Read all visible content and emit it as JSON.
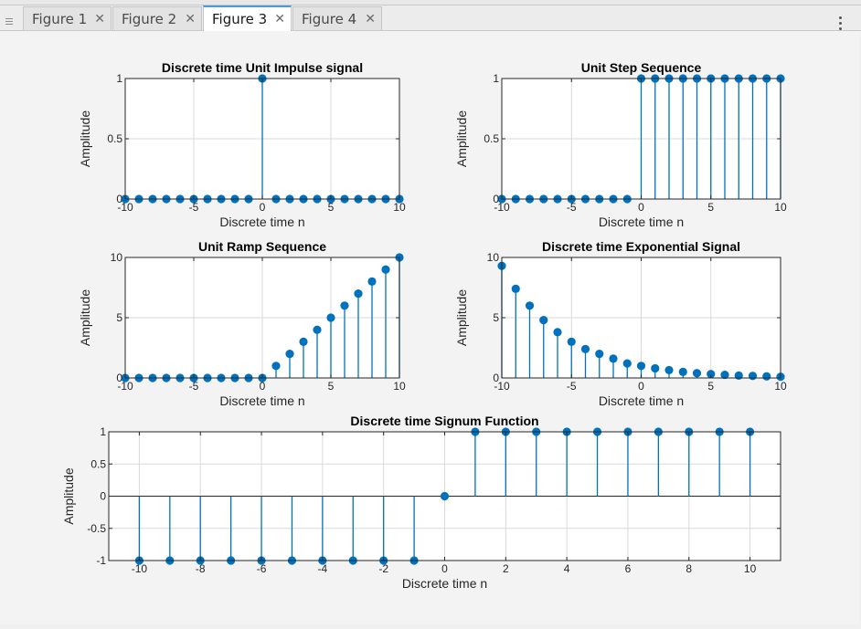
{
  "tabs": [
    {
      "label": "Figure 1",
      "active": false
    },
    {
      "label": "Figure 2",
      "active": false
    },
    {
      "label": "Figure 3",
      "active": true
    },
    {
      "label": "Figure 4",
      "active": false
    }
  ],
  "close_glyph": "✕",
  "colors": {
    "stem": "#0072bd",
    "marker": "#0072bd",
    "grid": "#d9d9d9",
    "axes_bg": "#ffffff",
    "figure_bg": "#f3f3f3"
  },
  "chart_data": [
    {
      "type": "stem",
      "title": "Discrete time Unit Impulse signal",
      "xlabel": "Discrete time n",
      "ylabel": "Amplitude",
      "xlim": [
        -10,
        10
      ],
      "ylim": [
        0,
        1
      ],
      "xticks": [
        -10,
        -5,
        0,
        5,
        10
      ],
      "yticks": [
        0,
        0.5,
        1
      ],
      "grid": true,
      "x": [
        -10,
        -9,
        -8,
        -7,
        -6,
        -5,
        -4,
        -3,
        -2,
        -1,
        0,
        1,
        2,
        3,
        4,
        5,
        6,
        7,
        8,
        9,
        10
      ],
      "y": [
        0,
        0,
        0,
        0,
        0,
        0,
        0,
        0,
        0,
        0,
        1,
        0,
        0,
        0,
        0,
        0,
        0,
        0,
        0,
        0,
        0
      ]
    },
    {
      "type": "stem",
      "title": "Unit Step Sequence",
      "xlabel": "Discrete time n",
      "ylabel": "Amplitude",
      "xlim": [
        -10,
        10
      ],
      "ylim": [
        0,
        1
      ],
      "xticks": [
        -10,
        -5,
        0,
        5,
        10
      ],
      "yticks": [
        0,
        0.5,
        1
      ],
      "grid": true,
      "x": [
        -10,
        -9,
        -8,
        -7,
        -6,
        -5,
        -4,
        -3,
        -2,
        -1,
        0,
        1,
        2,
        3,
        4,
        5,
        6,
        7,
        8,
        9,
        10
      ],
      "y": [
        0,
        0,
        0,
        0,
        0,
        0,
        0,
        0,
        0,
        0,
        1,
        1,
        1,
        1,
        1,
        1,
        1,
        1,
        1,
        1,
        1
      ]
    },
    {
      "type": "stem",
      "title": "Unit Ramp Sequence",
      "xlabel": "Discrete time n",
      "ylabel": "Amplitude",
      "xlim": [
        -10,
        10
      ],
      "ylim": [
        0,
        10
      ],
      "xticks": [
        -10,
        -5,
        0,
        5,
        10
      ],
      "yticks": [
        0,
        5,
        10
      ],
      "grid": true,
      "x": [
        -10,
        -9,
        -8,
        -7,
        -6,
        -5,
        -4,
        -3,
        -2,
        -1,
        0,
        1,
        2,
        3,
        4,
        5,
        6,
        7,
        8,
        9,
        10
      ],
      "y": [
        0,
        0,
        0,
        0,
        0,
        0,
        0,
        0,
        0,
        0,
        0,
        1,
        2,
        3,
        4,
        5,
        6,
        7,
        8,
        9,
        10
      ]
    },
    {
      "type": "stem",
      "title": "Discrete time Exponential Signal",
      "xlabel": "Discrete time n",
      "ylabel": "Amplitude",
      "xlim": [
        -10,
        10
      ],
      "ylim": [
        0,
        10
      ],
      "xticks": [
        -10,
        -5,
        0,
        5,
        10
      ],
      "yticks": [
        0,
        5,
        10
      ],
      "grid": true,
      "x": [
        -10,
        -9,
        -8,
        -7,
        -6,
        -5,
        -4,
        -3,
        -2,
        -1,
        0,
        1,
        2,
        3,
        4,
        5,
        6,
        7,
        8,
        9,
        10
      ],
      "y": [
        9.3,
        7.4,
        6.0,
        4.8,
        3.8,
        3.0,
        2.4,
        2.0,
        1.6,
        1.2,
        1.0,
        0.8,
        0.65,
        0.5,
        0.4,
        0.32,
        0.26,
        0.2,
        0.17,
        0.13,
        0.1
      ]
    },
    {
      "type": "stem",
      "title": "Discrete time Signum Function",
      "xlabel": "Discrete time n",
      "ylabel": "Amplitude",
      "xlim": [
        -11,
        11
      ],
      "ylim": [
        -1,
        1
      ],
      "xticks": [
        -10,
        -8,
        -6,
        -4,
        -2,
        0,
        2,
        4,
        6,
        8,
        10
      ],
      "yticks": [
        -1,
        -0.5,
        0,
        0.5,
        1
      ],
      "grid": true,
      "x": [
        -10,
        -9,
        -8,
        -7,
        -6,
        -5,
        -4,
        -3,
        -2,
        -1,
        0,
        1,
        2,
        3,
        4,
        5,
        6,
        7,
        8,
        9,
        10
      ],
      "y": [
        -1,
        -1,
        -1,
        -1,
        -1,
        -1,
        -1,
        -1,
        -1,
        -1,
        0,
        1,
        1,
        1,
        1,
        1,
        1,
        1,
        1,
        1,
        1
      ]
    }
  ]
}
